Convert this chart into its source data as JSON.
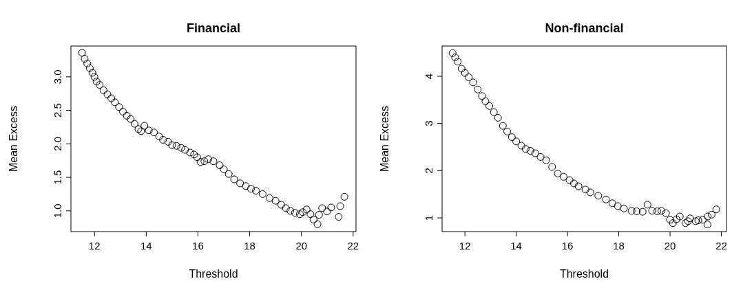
{
  "chart_data": [
    {
      "type": "scatter",
      "title": "Financial",
      "xlabel": "Threshold",
      "ylabel": "Mean Excess",
      "marker": "circle",
      "grid": false,
      "xlim": [
        11.09,
        22.11
      ],
      "ylim": [
        0.69,
        3.46
      ],
      "xticks": [
        12,
        14,
        16,
        18,
        20,
        22
      ],
      "yticks": [
        {
          "value": 1,
          "label": "1.0"
        },
        1.5,
        {
          "value": 2,
          "label": "2.0"
        },
        2.5,
        {
          "value": 3,
          "label": "3.0"
        }
      ],
      "series": [
        {
          "color": "#000000",
          "x": [
            11.52,
            11.62,
            11.72,
            11.82,
            11.92,
            12.0,
            12.08,
            12.2,
            12.35,
            12.5,
            12.65,
            12.79,
            12.95,
            13.1,
            13.25,
            13.4,
            13.55,
            13.7,
            13.8,
            13.93,
            14.1,
            14.3,
            14.5,
            14.65,
            14.85,
            15.0,
            15.17,
            15.35,
            15.5,
            15.7,
            15.85,
            15.97,
            16.1,
            16.25,
            16.4,
            16.6,
            16.84,
            17.0,
            17.19,
            17.4,
            17.63,
            17.85,
            18.05,
            18.24,
            18.5,
            18.77,
            19.0,
            19.22,
            19.4,
            19.57,
            19.75,
            19.94,
            20.05,
            20.2,
            20.35,
            20.47,
            20.62,
            20.68,
            20.8,
            20.99,
            21.15,
            21.44,
            21.5,
            21.66
          ],
          "values": [
            3.36,
            3.27,
            3.2,
            3.13,
            3.06,
            3.0,
            2.93,
            2.88,
            2.8,
            2.74,
            2.68,
            2.62,
            2.55,
            2.48,
            2.42,
            2.37,
            2.3,
            2.22,
            2.19,
            2.27,
            2.2,
            2.17,
            2.11,
            2.06,
            2.03,
            1.98,
            1.97,
            1.94,
            1.91,
            1.87,
            1.84,
            1.8,
            1.73,
            1.74,
            1.77,
            1.74,
            1.68,
            1.62,
            1.55,
            1.47,
            1.41,
            1.37,
            1.33,
            1.3,
            1.25,
            1.19,
            1.15,
            1.09,
            1.04,
            1.0,
            0.97,
            0.95,
            0.98,
            1.02,
            0.95,
            0.87,
            0.8,
            0.94,
            1.04,
            0.99,
            1.05,
            0.91,
            1.07,
            1.21
          ]
        }
      ]
    },
    {
      "type": "scatter",
      "title": "Non-financial",
      "xlabel": "Threshold",
      "ylabel": "Mean Excess",
      "marker": "circle",
      "grid": false,
      "xlim": [
        11.11,
        22.2
      ],
      "ylim": [
        0.71,
        4.64
      ],
      "xticks": [
        12,
        14,
        16,
        18,
        20,
        22
      ],
      "yticks": [
        1,
        2,
        3,
        4
      ],
      "series": [
        {
          "color": "#000000",
          "x": [
            11.52,
            11.62,
            11.72,
            11.87,
            12.0,
            12.15,
            12.32,
            12.5,
            12.67,
            12.8,
            12.95,
            13.13,
            13.29,
            13.48,
            13.65,
            13.83,
            14.0,
            14.2,
            14.37,
            14.55,
            14.74,
            14.95,
            15.17,
            15.4,
            15.62,
            15.85,
            16.08,
            16.25,
            16.43,
            16.7,
            16.89,
            17.2,
            17.5,
            17.75,
            17.96,
            18.2,
            18.5,
            18.7,
            18.93,
            19.12,
            19.3,
            19.5,
            19.66,
            19.84,
            20.0,
            20.11,
            20.25,
            20.38,
            20.6,
            20.7,
            20.78,
            21.0,
            21.1,
            21.27,
            21.46,
            21.47,
            21.62,
            21.8
          ],
          "values": [
            4.49,
            4.4,
            4.31,
            4.16,
            4.07,
            3.98,
            3.87,
            3.72,
            3.58,
            3.47,
            3.37,
            3.24,
            3.12,
            2.95,
            2.83,
            2.71,
            2.62,
            2.53,
            2.46,
            2.42,
            2.37,
            2.29,
            2.22,
            2.08,
            1.94,
            1.87,
            1.8,
            1.73,
            1.67,
            1.6,
            1.54,
            1.47,
            1.39,
            1.31,
            1.25,
            1.2,
            1.15,
            1.14,
            1.13,
            1.28,
            1.15,
            1.14,
            1.15,
            1.1,
            0.96,
            0.89,
            0.97,
            1.03,
            0.89,
            0.93,
            0.99,
            0.93,
            0.95,
            0.96,
            0.86,
            1.03,
            1.07,
            1.18
          ]
        }
      ]
    }
  ]
}
